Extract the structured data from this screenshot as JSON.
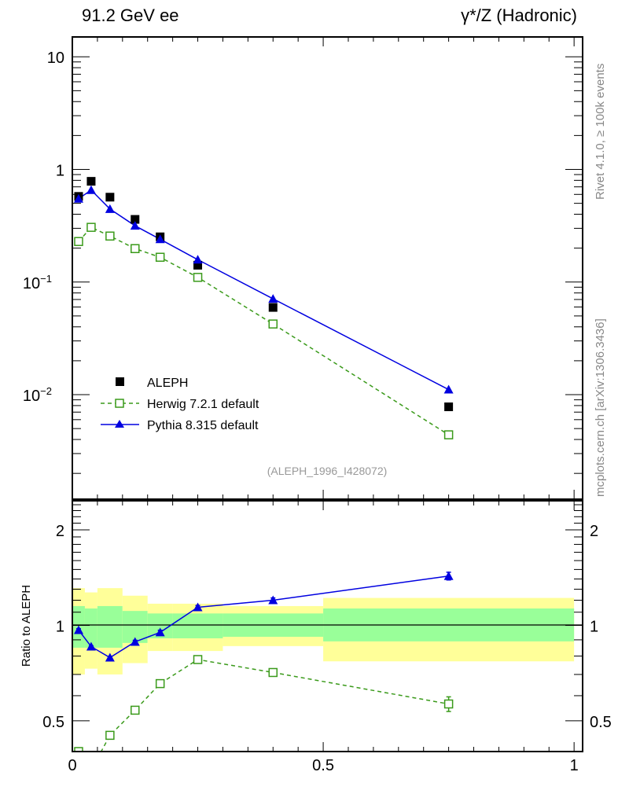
{
  "header": {
    "left_title": "91.2 GeV ee",
    "right_title": "γ*/Z (Hadronic)"
  },
  "side_labels": {
    "top": "Rivet 4.1.0, ≥ 100k events",
    "bottom": "mcplots.cern.ch [arXiv:1306.3436]"
  },
  "analysis_label": "(ALEPH_1996_I428072)",
  "colors": {
    "data": "#000000",
    "herwig": "#3a9a1a",
    "pythia": "#0000e0",
    "band_inner": "#99ff99",
    "band_outer": "#ffff99"
  },
  "chart_data": [
    {
      "type": "scatter",
      "panel": "main",
      "title": "",
      "xlabel": "",
      "ylabel": "",
      "yscale": "log",
      "xlim": [
        0,
        1.017
      ],
      "ylim": [
        0.00118,
        15
      ],
      "y_ticks": [
        {
          "value": 10,
          "label": "10"
        },
        {
          "value": 1,
          "label": "1"
        },
        {
          "value": 0.1,
          "label": "10",
          "exp": "−1"
        },
        {
          "value": 0.01,
          "label": "10",
          "exp": "−2"
        }
      ],
      "legend_position": "lower-left",
      "series": [
        {
          "name": "ALEPH",
          "style": "filled-square",
          "line": "none",
          "x": [
            0.0125,
            0.0375,
            0.075,
            0.125,
            0.175,
            0.25,
            0.4,
            0.75
          ],
          "y": [
            0.576,
            0.784,
            0.567,
            0.36,
            0.252,
            0.141,
            0.0595,
            0.0078
          ]
        },
        {
          "name": "Herwig 7.2.1 default",
          "style": "open-square",
          "line": "dashed",
          "x": [
            0.0125,
            0.0375,
            0.075,
            0.125,
            0.175,
            0.25,
            0.4,
            0.75
          ],
          "y": [
            0.229,
            0.306,
            0.256,
            0.198,
            0.166,
            0.11,
            0.0424,
            0.0044
          ]
        },
        {
          "name": "Pythia 8.315 default",
          "style": "filled-triangle",
          "line": "solid",
          "x": [
            0.0125,
            0.0375,
            0.075,
            0.125,
            0.175,
            0.25,
            0.4,
            0.75
          ],
          "y": [
            0.549,
            0.656,
            0.445,
            0.316,
            0.24,
            0.158,
            0.071,
            0.0111
          ]
        }
      ]
    },
    {
      "type": "line",
      "panel": "ratio",
      "ylabel": "Ratio to ALEPH",
      "yscale": "log",
      "xlim": [
        0,
        1.017
      ],
      "ylim": [
        0.4,
        2.47
      ],
      "x_ticks": [
        {
          "value": 0,
          "label": "0"
        },
        {
          "value": 0.5,
          "label": "0.5"
        },
        {
          "value": 1,
          "label": "1"
        }
      ],
      "y_ticks": [
        {
          "value": 0.5,
          "label": "0.5"
        },
        {
          "value": 1,
          "label": "1"
        },
        {
          "value": 2,
          "label": "2"
        }
      ],
      "bands": [
        {
          "x0": 0.0,
          "x1": 0.025,
          "outer": [
            0.7,
            1.31
          ],
          "inner": [
            0.85,
            1.15
          ]
        },
        {
          "x0": 0.025,
          "x1": 0.05,
          "outer": [
            0.73,
            1.27
          ],
          "inner": [
            0.85,
            1.13
          ]
        },
        {
          "x0": 0.05,
          "x1": 0.1,
          "outer": [
            0.7,
            1.31
          ],
          "inner": [
            0.85,
            1.15
          ]
        },
        {
          "x0": 0.1,
          "x1": 0.15,
          "outer": [
            0.76,
            1.24
          ],
          "inner": [
            0.88,
            1.11
          ]
        },
        {
          "x0": 0.15,
          "x1": 0.2,
          "outer": [
            0.83,
            1.17
          ],
          "inner": [
            0.91,
            1.09
          ]
        },
        {
          "x0": 0.2,
          "x1": 0.3,
          "outer": [
            0.83,
            1.17
          ],
          "inner": [
            0.91,
            1.09
          ]
        },
        {
          "x0": 0.3,
          "x1": 0.5,
          "outer": [
            0.86,
            1.15
          ],
          "inner": [
            0.92,
            1.09
          ]
        },
        {
          "x0": 0.5,
          "x1": 1.0,
          "outer": [
            0.77,
            1.22
          ],
          "inner": [
            0.89,
            1.13
          ]
        }
      ],
      "series": [
        {
          "name": "Herwig 7.2.1 default",
          "style": "open-square",
          "line": "dashed",
          "x": [
            0.0125,
            0.0375,
            0.075,
            0.125,
            0.175,
            0.25,
            0.4,
            0.75
          ],
          "y": [
            0.4,
            0.35,
            0.45,
            0.54,
            0.655,
            0.78,
            0.71,
            0.565
          ],
          "err": [
            0.01,
            0.01,
            0.005,
            0.005,
            0.005,
            0.005,
            0.005,
            0.03
          ]
        },
        {
          "name": "Pythia 8.315 default",
          "style": "filled-triangle",
          "line": "solid",
          "x": [
            0.0125,
            0.0375,
            0.075,
            0.125,
            0.175,
            0.25,
            0.4,
            0.75
          ],
          "y": [
            0.966,
            0.857,
            0.791,
            0.887,
            0.95,
            1.14,
            1.2,
            1.43
          ],
          "err": [
            0.01,
            0.005,
            0.005,
            0.01,
            0.015,
            0.015,
            0.02,
            0.04
          ]
        }
      ]
    }
  ]
}
